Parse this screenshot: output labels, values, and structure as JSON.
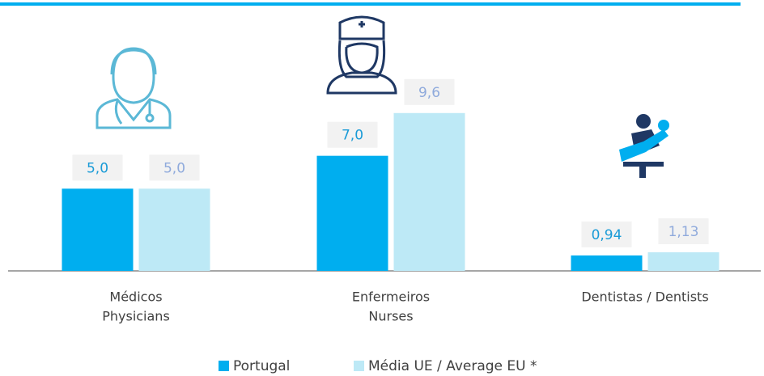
{
  "chart_data": {
    "type": "bar",
    "categories": [
      [
        "Médicos",
        "Physicians"
      ],
      [
        "Enfermeiros",
        "Nurses"
      ],
      [
        "Dentistas / Dentists"
      ]
    ],
    "series": [
      {
        "name": "Portugal",
        "color": "#00aeef",
        "values": [
          5.0,
          7.0,
          0.94
        ],
        "value_labels": [
          "5,0",
          "7,0",
          "0,94"
        ]
      },
      {
        "name": "Média UE / Average EU *",
        "color": "#bde9f6",
        "values": [
          5.0,
          9.6,
          1.13
        ],
        "value_labels": [
          "5,0",
          "9,6",
          "1,13"
        ]
      }
    ],
    "ylim": [
      0,
      15
    ]
  }
}
